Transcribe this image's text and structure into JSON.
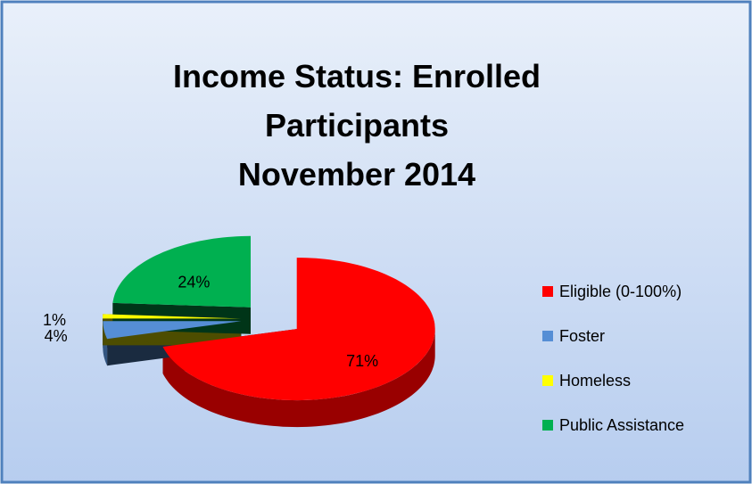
{
  "chart_data": {
    "type": "pie",
    "title": "Income Status:  Enrolled\nParticipants\nNovember 2014",
    "categories": [
      "Eligible (0-100%)",
      "Foster",
      "Homeless",
      "Public Assistance"
    ],
    "values": [
      71,
      4,
      1,
      24
    ],
    "value_labels": [
      "71%",
      "4%",
      "1%",
      "24%"
    ],
    "colors": [
      "#ff0000",
      "#558ed5",
      "#ffff00",
      "#00b050"
    ],
    "legend": "right"
  }
}
